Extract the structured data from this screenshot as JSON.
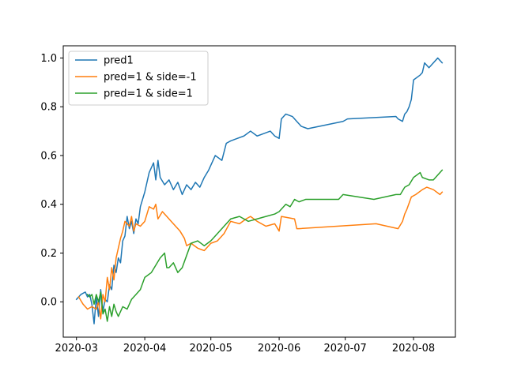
{
  "chart_data": {
    "type": "line",
    "title": "",
    "xlabel": "",
    "ylabel": "",
    "xlim": [
      "2020-02-24",
      "2020-08-20"
    ],
    "ylim": [
      -0.145,
      1.05
    ],
    "x_ticks": [
      {
        "date": "2020-03-01",
        "label": "2020-03"
      },
      {
        "date": "2020-04-01",
        "label": "2020-04"
      },
      {
        "date": "2020-05-01",
        "label": "2020-05"
      },
      {
        "date": "2020-06-01",
        "label": "2020-06"
      },
      {
        "date": "2020-07-01",
        "label": "2020-07"
      },
      {
        "date": "2020-08-01",
        "label": "2020-08"
      }
    ],
    "y_ticks": [
      {
        "value": 0.0,
        "label": "0.0"
      },
      {
        "value": 0.2,
        "label": "0.2"
      },
      {
        "value": 0.4,
        "label": "0.4"
      },
      {
        "value": 0.6,
        "label": "0.6"
      },
      {
        "value": 0.8,
        "label": "0.8"
      },
      {
        "value": 1.0,
        "label": "1.0"
      }
    ],
    "grid": false,
    "legend_position": "top-left",
    "series": [
      {
        "name": "pred1",
        "color": "#1f77b4",
        "points": [
          [
            "2020-03-01",
            0.01
          ],
          [
            "2020-03-03",
            0.03
          ],
          [
            "2020-03-05",
            0.04
          ],
          [
            "2020-03-06",
            0.02
          ],
          [
            "2020-03-07",
            0.03
          ],
          [
            "2020-03-08",
            -0.01
          ],
          [
            "2020-03-09",
            -0.09
          ],
          [
            "2020-03-10",
            0.02
          ],
          [
            "2020-03-11",
            -0.06
          ],
          [
            "2020-03-12",
            0.05
          ],
          [
            "2020-03-13",
            -0.04
          ],
          [
            "2020-03-14",
            0.01
          ],
          [
            "2020-03-15",
            0.0
          ],
          [
            "2020-03-16",
            0.07
          ],
          [
            "2020-03-17",
            0.05
          ],
          [
            "2020-03-18",
            0.15
          ],
          [
            "2020-03-19",
            0.12
          ],
          [
            "2020-03-20",
            0.18
          ],
          [
            "2020-03-21",
            0.16
          ],
          [
            "2020-03-22",
            0.25
          ],
          [
            "2020-03-23",
            0.27
          ],
          [
            "2020-03-24",
            0.35
          ],
          [
            "2020-03-25",
            0.3
          ],
          [
            "2020-03-26",
            0.33
          ],
          [
            "2020-03-27",
            0.28
          ],
          [
            "2020-03-28",
            0.34
          ],
          [
            "2020-03-29",
            0.32
          ],
          [
            "2020-03-30",
            0.39
          ],
          [
            "2020-04-01",
            0.45
          ],
          [
            "2020-04-03",
            0.53
          ],
          [
            "2020-04-05",
            0.57
          ],
          [
            "2020-04-06",
            0.5
          ],
          [
            "2020-04-07",
            0.58
          ],
          [
            "2020-04-08",
            0.51
          ],
          [
            "2020-04-10",
            0.48
          ],
          [
            "2020-04-12",
            0.5
          ],
          [
            "2020-04-14",
            0.46
          ],
          [
            "2020-04-16",
            0.49
          ],
          [
            "2020-04-18",
            0.44
          ],
          [
            "2020-04-20",
            0.48
          ],
          [
            "2020-04-22",
            0.46
          ],
          [
            "2020-04-24",
            0.49
          ],
          [
            "2020-04-26",
            0.47
          ],
          [
            "2020-04-28",
            0.51
          ],
          [
            "2020-04-30",
            0.54
          ],
          [
            "2020-05-03",
            0.6
          ],
          [
            "2020-05-06",
            0.58
          ],
          [
            "2020-05-08",
            0.65
          ],
          [
            "2020-05-10",
            0.66
          ],
          [
            "2020-05-13",
            0.67
          ],
          [
            "2020-05-16",
            0.68
          ],
          [
            "2020-05-19",
            0.7
          ],
          [
            "2020-05-22",
            0.68
          ],
          [
            "2020-05-25",
            0.69
          ],
          [
            "2020-05-28",
            0.7
          ],
          [
            "2020-05-30",
            0.68
          ],
          [
            "2020-06-01",
            0.67
          ],
          [
            "2020-06-02",
            0.75
          ],
          [
            "2020-06-04",
            0.77
          ],
          [
            "2020-06-07",
            0.76
          ],
          [
            "2020-06-09",
            0.74
          ],
          [
            "2020-06-11",
            0.72
          ],
          [
            "2020-06-14",
            0.71
          ],
          [
            "2020-06-30",
            0.74
          ],
          [
            "2020-07-02",
            0.75
          ],
          [
            "2020-07-24",
            0.76
          ],
          [
            "2020-07-25",
            0.75
          ],
          [
            "2020-07-27",
            0.74
          ],
          [
            "2020-07-28",
            0.77
          ],
          [
            "2020-07-29",
            0.78
          ],
          [
            "2020-07-30",
            0.8
          ],
          [
            "2020-07-31",
            0.83
          ],
          [
            "2020-08-01",
            0.91
          ],
          [
            "2020-08-04",
            0.93
          ],
          [
            "2020-08-05",
            0.94
          ],
          [
            "2020-08-06",
            0.98
          ],
          [
            "2020-08-08",
            0.96
          ],
          [
            "2020-08-10",
            0.98
          ],
          [
            "2020-08-12",
            1.0
          ],
          [
            "2020-08-14",
            0.98
          ]
        ]
      },
      {
        "name": "pred=1 & side=-1",
        "color": "#ff7f0e",
        "points": [
          [
            "2020-03-02",
            0.02
          ],
          [
            "2020-03-04",
            -0.01
          ],
          [
            "2020-03-06",
            -0.03
          ],
          [
            "2020-03-08",
            -0.02
          ],
          [
            "2020-03-10",
            -0.03
          ],
          [
            "2020-03-11",
            0.0
          ],
          [
            "2020-03-12",
            -0.07
          ],
          [
            "2020-03-13",
            0.03
          ],
          [
            "2020-03-14",
            0.0
          ],
          [
            "2020-03-15",
            0.1
          ],
          [
            "2020-03-16",
            0.05
          ],
          [
            "2020-03-17",
            0.14
          ],
          [
            "2020-03-18",
            0.09
          ],
          [
            "2020-03-19",
            0.18
          ],
          [
            "2020-03-20",
            0.22
          ],
          [
            "2020-03-21",
            0.26
          ],
          [
            "2020-03-22",
            0.29
          ],
          [
            "2020-03-23",
            0.33
          ],
          [
            "2020-03-25",
            0.31
          ],
          [
            "2020-03-26",
            0.35
          ],
          [
            "2020-03-27",
            0.29
          ],
          [
            "2020-03-28",
            0.32
          ],
          [
            "2020-03-30",
            0.31
          ],
          [
            "2020-04-01",
            0.33
          ],
          [
            "2020-04-03",
            0.39
          ],
          [
            "2020-04-05",
            0.38
          ],
          [
            "2020-04-06",
            0.4
          ],
          [
            "2020-04-07",
            0.34
          ],
          [
            "2020-04-09",
            0.37
          ],
          [
            "2020-04-11",
            0.35
          ],
          [
            "2020-04-13",
            0.33
          ],
          [
            "2020-04-15",
            0.31
          ],
          [
            "2020-04-17",
            0.29
          ],
          [
            "2020-04-19",
            0.26
          ],
          [
            "2020-04-20",
            0.23
          ],
          [
            "2020-04-22",
            0.24
          ],
          [
            "2020-04-25",
            0.22
          ],
          [
            "2020-04-28",
            0.21
          ],
          [
            "2020-05-01",
            0.24
          ],
          [
            "2020-05-04",
            0.25
          ],
          [
            "2020-05-07",
            0.28
          ],
          [
            "2020-05-10",
            0.33
          ],
          [
            "2020-05-14",
            0.32
          ],
          [
            "2020-05-17",
            0.34
          ],
          [
            "2020-05-19",
            0.35
          ],
          [
            "2020-05-22",
            0.33
          ],
          [
            "2020-05-26",
            0.31
          ],
          [
            "2020-05-30",
            0.32
          ],
          [
            "2020-06-01",
            0.29
          ],
          [
            "2020-06-02",
            0.35
          ],
          [
            "2020-06-08",
            0.34
          ],
          [
            "2020-06-09",
            0.3
          ],
          [
            "2020-06-10",
            0.3
          ],
          [
            "2020-07-15",
            0.32
          ],
          [
            "2020-07-25",
            0.3
          ],
          [
            "2020-07-27",
            0.33
          ],
          [
            "2020-07-28",
            0.36
          ],
          [
            "2020-07-29",
            0.38
          ],
          [
            "2020-07-31",
            0.43
          ],
          [
            "2020-08-02",
            0.44
          ],
          [
            "2020-08-05",
            0.46
          ],
          [
            "2020-08-07",
            0.47
          ],
          [
            "2020-08-10",
            0.46
          ],
          [
            "2020-08-13",
            0.44
          ],
          [
            "2020-08-14",
            0.45
          ]
        ]
      },
      {
        "name": "pred=1 & side=1",
        "color": "#2ca02c",
        "points": [
          [
            "2020-03-06",
            0.03
          ],
          [
            "2020-03-07",
            0.02
          ],
          [
            "2020-03-08",
            0.03
          ],
          [
            "2020-03-09",
            -0.01
          ],
          [
            "2020-03-10",
            0.03
          ],
          [
            "2020-03-11",
            0.0
          ],
          [
            "2020-03-12",
            0.04
          ],
          [
            "2020-03-13",
            -0.05
          ],
          [
            "2020-03-14",
            -0.03
          ],
          [
            "2020-03-15",
            -0.08
          ],
          [
            "2020-03-16",
            -0.02
          ],
          [
            "2020-03-17",
            -0.06
          ],
          [
            "2020-03-18",
            -0.01
          ],
          [
            "2020-03-19",
            -0.04
          ],
          [
            "2020-03-20",
            -0.06
          ],
          [
            "2020-03-22",
            -0.02
          ],
          [
            "2020-03-24",
            -0.03
          ],
          [
            "2020-03-26",
            0.01
          ],
          [
            "2020-03-28",
            0.03
          ],
          [
            "2020-03-30",
            0.05
          ],
          [
            "2020-04-01",
            0.1
          ],
          [
            "2020-04-04",
            0.12
          ],
          [
            "2020-04-06",
            0.15
          ],
          [
            "2020-04-08",
            0.18
          ],
          [
            "2020-04-10",
            0.2
          ],
          [
            "2020-04-11",
            0.14
          ],
          [
            "2020-04-12",
            0.14
          ],
          [
            "2020-04-14",
            0.16
          ],
          [
            "2020-04-16",
            0.12
          ],
          [
            "2020-04-18",
            0.14
          ],
          [
            "2020-04-20",
            0.19
          ],
          [
            "2020-04-22",
            0.24
          ],
          [
            "2020-04-25",
            0.25
          ],
          [
            "2020-04-28",
            0.23
          ],
          [
            "2020-05-01",
            0.25
          ],
          [
            "2020-05-04",
            0.28
          ],
          [
            "2020-05-07",
            0.31
          ],
          [
            "2020-05-10",
            0.34
          ],
          [
            "2020-05-14",
            0.35
          ],
          [
            "2020-05-18",
            0.33
          ],
          [
            "2020-05-22",
            0.34
          ],
          [
            "2020-05-26",
            0.35
          ],
          [
            "2020-05-30",
            0.36
          ],
          [
            "2020-06-01",
            0.37
          ],
          [
            "2020-06-04",
            0.4
          ],
          [
            "2020-06-06",
            0.39
          ],
          [
            "2020-06-08",
            0.42
          ],
          [
            "2020-06-10",
            0.41
          ],
          [
            "2020-06-13",
            0.42
          ],
          [
            "2020-06-28",
            0.42
          ],
          [
            "2020-06-30",
            0.44
          ],
          [
            "2020-07-14",
            0.42
          ],
          [
            "2020-07-24",
            0.44
          ],
          [
            "2020-07-26",
            0.44
          ],
          [
            "2020-07-28",
            0.47
          ],
          [
            "2020-07-30",
            0.48
          ],
          [
            "2020-08-01",
            0.51
          ],
          [
            "2020-08-04",
            0.53
          ],
          [
            "2020-08-05",
            0.51
          ],
          [
            "2020-08-08",
            0.5
          ],
          [
            "2020-08-10",
            0.5
          ],
          [
            "2020-08-12",
            0.52
          ],
          [
            "2020-08-14",
            0.54
          ]
        ]
      }
    ]
  }
}
